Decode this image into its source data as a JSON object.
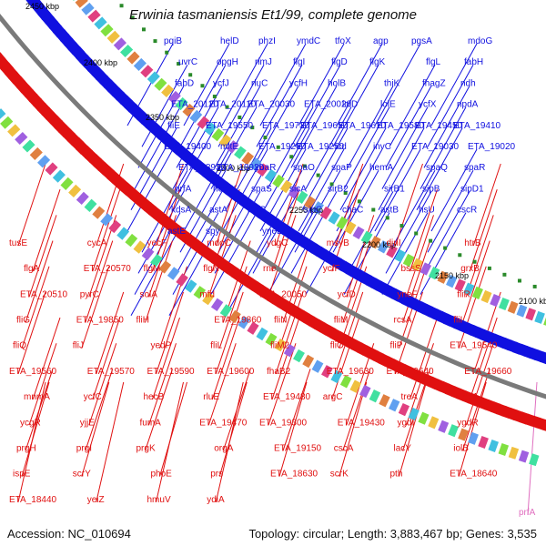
{
  "title": "Erwinia tasmaniensis Et1/99, complete genome",
  "footer": {
    "accession": "Accession: NC_010694",
    "summary": "Topology: circular; Length: 3,883,467 bp; Genes: 3,535"
  },
  "colors": {
    "forward": "#1010e0",
    "reverse": "#e01010",
    "backbone": "#7a7a7a",
    "pseudo": "#e070c0",
    "gc_tick": "#2a8a2a"
  },
  "scale_ticks": [
    "2450 kbp",
    "2400 kbp",
    "2350 kbp",
    "2300 kbp",
    "2250 kbp",
    "2200 kbp",
    "2150 kbp",
    "2100 kbp"
  ],
  "blue_labels": [
    "pqiB",
    "helD",
    "phzI",
    "ymdC",
    "tfoX",
    "agp",
    "pgsA",
    "mdoG",
    "uvrC",
    "opgH",
    "rimJ",
    "flgI",
    "flgD",
    "flgK",
    "flgL",
    "fabH",
    "fabD",
    "ycfJ",
    "rluC",
    "ycfH",
    "holB",
    "thiK",
    "fhagZ",
    "ndh",
    "ETA_20120",
    "ETA_20110",
    "ETA_20030",
    "ETA_20020",
    "lolD",
    "lolE",
    "ycfX",
    "npdA",
    "fliE",
    "ETA_19550",
    "ETA_19730",
    "ETA_19650",
    "ETA_19610",
    "ETA_19580",
    "ETA_19450",
    "ETA_19410",
    "ETA_19400",
    "mltE",
    "ETA_19260",
    "ETA_19250",
    "icd",
    "invC",
    "ETA_19030",
    "ETA_19020",
    "ETA_18930",
    "ETA_18920",
    "ybaR",
    "spaO",
    "spaP",
    "hemA",
    "spaQ",
    "spaR",
    "prfA",
    "hemK",
    "spaS",
    "sicA",
    "sirB2",
    "sirB1",
    "sipB",
    "sipD1",
    "kdsA",
    "astA",
    "invG",
    "sipC",
    "chaC",
    "astB",
    "hsU",
    "cscR",
    "astE",
    "spy",
    "yneE"
  ],
  "red_labels": [
    "tusE",
    "cycA",
    "yecF",
    "mdoC",
    "ydgC",
    "msyB",
    "dinI",
    "htrB",
    "flgA",
    "ETA_20570",
    "flgM",
    "flgN",
    "rne",
    "ycfF",
    "bssS",
    "grxB",
    "ETA_20510",
    "pyrC",
    "solA",
    "mfd",
    "ETA_20050",
    "ycfD",
    "yneF",
    "fliR",
    "fliG",
    "ETA_19850",
    "fliH",
    "ETA_19860",
    "fliN",
    "fliM",
    "rcsA",
    "fliI",
    "fliQ",
    "fliJ",
    "yedP",
    "fliL",
    "fliM2",
    "fliO",
    "fliP",
    "ETA_19540",
    "ETA_19560",
    "ETA_19570",
    "ETA_19590",
    "ETA_19600",
    "fhaB2",
    "ETA_19630",
    "ETA_19640",
    "ETA_19660",
    "mnmA",
    "ycfC",
    "hecB",
    "rluE",
    "ETA_19480",
    "argC",
    "treA",
    "ldcA",
    "ycgR",
    "yjjE",
    "fumA",
    "ETA_19470",
    "ETA_19300",
    "ETA_19430",
    "ygdI",
    "ygdR",
    "prgH",
    "prgI",
    "prgK",
    "orgA",
    "ETA_19150",
    "cscA",
    "lacY",
    "iolB",
    "ispE",
    "scrY",
    "phoE",
    "prs",
    "ETA_18630",
    "scrK",
    "pth",
    "ETA_18640",
    "ETA_18440",
    "yeiZ",
    "hmuV",
    "ydiA"
  ],
  "pink_labels": [
    "prfA"
  ]
}
